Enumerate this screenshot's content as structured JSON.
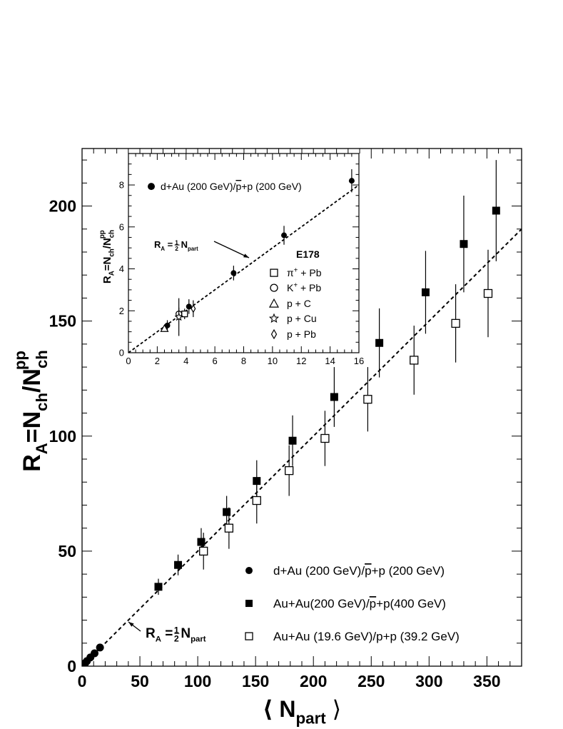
{
  "chart_data": [
    {
      "type": "scatter",
      "title": "",
      "xlim": [
        0,
        380
      ],
      "ylim": [
        0,
        225
      ],
      "x_ticks": [
        "0",
        "50",
        "100",
        "150",
        "200",
        "250",
        "300",
        "350"
      ],
      "y_ticks": [
        "0",
        "50",
        "100",
        "150",
        "200"
      ],
      "x_tick_values": [
        0,
        50,
        100,
        150,
        200,
        250,
        300,
        350
      ],
      "y_tick_values": [
        0,
        50,
        100,
        150,
        200
      ],
      "xlabel": {
        "open": "⟨ N",
        "sub": "part",
        "close": " ⟩"
      },
      "ylabel": {
        "pre": "R",
        "pre_sub": "A",
        "mid": "=N",
        "mid_sub": "ch",
        "tail": "/N",
        "tail_sub": "ch",
        "tail_sup": "pp"
      },
      "reference_line": {
        "slope": 0.5,
        "label_pre": "R",
        "label_sub": "A",
        "label_eq": " = ",
        "label_num": "1",
        "label_den": "2",
        "label_var": "N",
        "label_var_sub": "part"
      },
      "series": [
        {
          "name": "d+Au (200 GeV)/p̅+p (200 GeV)",
          "legend": {
            "pre": "d+Au (200 GeV)/",
            "bar": "p",
            "post": "+p (200 GeV)"
          },
          "marker": "filled-circle",
          "points": [
            {
              "x": 2.7,
              "y": 1.3,
              "err": 0.4
            },
            {
              "x": 4.2,
              "y": 2.2,
              "err": 0.4
            },
            {
              "x": 7.2,
              "y": 3.8,
              "err": 0.4
            },
            {
              "x": 10.8,
              "y": 5.6,
              "err": 0.5
            },
            {
              "x": 15.5,
              "y": 8.1,
              "err": 0.6
            }
          ]
        },
        {
          "name": "Au+Au(200 GeV)/p̅+p(400 GeV)",
          "legend": {
            "pre": "Au+Au(200 GeV)/",
            "bar": "p",
            "post": "+p(400 GeV)"
          },
          "marker": "filled-square",
          "points": [
            {
              "x": 66,
              "y": 34.5,
              "err": 3.5
            },
            {
              "x": 83,
              "y": 44,
              "err": 4.5
            },
            {
              "x": 103,
              "y": 54,
              "err": 6
            },
            {
              "x": 125,
              "y": 67,
              "err": 7
            },
            {
              "x": 151,
              "y": 80.5,
              "err": 9
            },
            {
              "x": 182,
              "y": 98,
              "err": 11
            },
            {
              "x": 218,
              "y": 117,
              "err": 13
            },
            {
              "x": 257,
              "y": 140.5,
              "err": 15
            },
            {
              "x": 297,
              "y": 162.5,
              "err": 18
            },
            {
              "x": 330,
              "y": 183.5,
              "err": 21
            },
            {
              "x": 358,
              "y": 198,
              "err": 22
            }
          ]
        },
        {
          "name": "Au+Au (19.6 GeV)/p+p (39.2 GeV)",
          "legend": {
            "pre": "Au+Au (19.6 GeV)/p+p (39.2 GeV)",
            "bar": "",
            "post": ""
          },
          "marker": "open-square",
          "points": [
            {
              "x": 105,
              "y": 50,
              "err": 8
            },
            {
              "x": 127,
              "y": 60,
              "err": 9
            },
            {
              "x": 151,
              "y": 72,
              "err": 10
            },
            {
              "x": 179,
              "y": 85,
              "err": 11
            },
            {
              "x": 210,
              "y": 99,
              "err": 12
            },
            {
              "x": 247,
              "y": 116,
              "err": 14
            },
            {
              "x": 287,
              "y": 133,
              "err": 15
            },
            {
              "x": 323,
              "y": 149,
              "err": 17
            },
            {
              "x": 351,
              "y": 162,
              "err": 19
            }
          ]
        }
      ]
    },
    {
      "type": "scatter",
      "title": "",
      "xlim": [
        0,
        16
      ],
      "ylim": [
        0,
        9.5
      ],
      "x_ticks": [
        "0",
        "2",
        "4",
        "6",
        "8",
        "10",
        "12",
        "14",
        "16"
      ],
      "y_ticks": [
        "0",
        "2",
        "4",
        "6",
        "8"
      ],
      "x_tick_values": [
        0,
        2,
        4,
        6,
        8,
        10,
        12,
        14,
        16
      ],
      "y_tick_values": [
        0,
        2,
        4,
        6,
        8
      ],
      "ylabel": {
        "pre": "R",
        "pre_sub": "A",
        "mid": "=N",
        "mid_sub": "ch",
        "tail": "/N",
        "tail_sub": "ch",
        "tail_sup": "pp"
      },
      "reference_line": {
        "slope": 0.5,
        "label_pre": "R",
        "label_sub": "A",
        "label_eq": " = ",
        "label_num": "1",
        "label_den": "2",
        "label_var": "N",
        "label_var_sub": "part"
      },
      "legend_title": "E178",
      "series": [
        {
          "name": "d+Au (200 GeV)/p̅+p (200 GeV)",
          "legend": {
            "pre": "d+Au (200 GeV)/",
            "bar": "p",
            "post": "+p (200 GeV)"
          },
          "marker": "filled-circle",
          "points": [
            {
              "x": 2.7,
              "y": 1.3,
              "err": 0.25
            },
            {
              "x": 4.2,
              "y": 2.2,
              "err": 0.35
            },
            {
              "x": 7.3,
              "y": 3.8,
              "err": 0.35
            },
            {
              "x": 10.8,
              "y": 5.6,
              "err": 0.45
            },
            {
              "x": 15.5,
              "y": 8.2,
              "err": 0.55
            }
          ]
        },
        {
          "name": "π+ + Pb",
          "legend": {
            "pre": "π",
            "sup": "+",
            "post": " + Pb"
          },
          "marker": "open-square",
          "points": [
            {
              "x": 3.9,
              "y": 1.85,
              "err": 0.25
            }
          ]
        },
        {
          "name": "K+ + Pb",
          "legend": {
            "pre": "K",
            "sup": "+",
            "post": " + Pb"
          },
          "marker": "open-circle",
          "points": [
            {
              "x": 3.5,
              "y": 1.85,
              "err": 0.3
            }
          ]
        },
        {
          "name": "p + C",
          "legend": {
            "pre": "p + C",
            "sup": "",
            "post": ""
          },
          "marker": "open-triangle",
          "points": [
            {
              "x": 2.5,
              "y": 1.15,
              "err": 0.15
            }
          ]
        },
        {
          "name": "p + Cu",
          "legend": {
            "pre": "p + Cu",
            "sup": "",
            "post": ""
          },
          "marker": "open-star",
          "points": [
            {
              "x": 3.5,
              "y": 1.7,
              "err": 0.9
            }
          ]
        },
        {
          "name": "p + Pb",
          "legend": {
            "pre": "p + Pb",
            "sup": "",
            "post": ""
          },
          "marker": "open-diamond",
          "points": [
            {
              "x": 4.5,
              "y": 2.1,
              "err": 0.4
            }
          ]
        }
      ]
    }
  ]
}
